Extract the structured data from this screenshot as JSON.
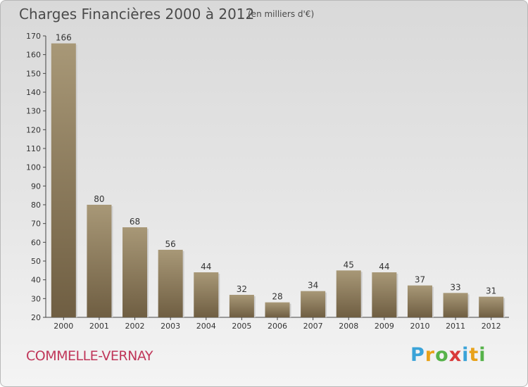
{
  "header": {
    "title": "Charges Financières 2000 à 2012",
    "subtitle": "(en milliers d'€)"
  },
  "footer": {
    "commune": "COMMELLE-VERNAY",
    "logo": [
      "P",
      "r",
      "o",
      "x",
      "i",
      "t",
      "i"
    ],
    "logo_colors": [
      "#3aa3d8",
      "#e8a21a",
      "#56b24a",
      "#d93a3a",
      "#3aa3d8",
      "#e8a21a",
      "#56b24a"
    ]
  },
  "colors": {
    "bar_top": "#a89877",
    "bar_bottom": "#6f5e42",
    "axis": "#444444",
    "accent": "#c0375a"
  },
  "chart_data": {
    "type": "bar",
    "title": "Charges Financières 2000 à 2012",
    "subtitle": "(en milliers d'€)",
    "categories": [
      "2000",
      "2001",
      "2002",
      "2003",
      "2004",
      "2005",
      "2006",
      "2007",
      "2008",
      "2009",
      "2010",
      "2011",
      "2012"
    ],
    "values": [
      166,
      80,
      68,
      56,
      44,
      32,
      28,
      34,
      45,
      44,
      37,
      33,
      31
    ],
    "ylim": [
      20,
      170
    ],
    "yticks": [
      20,
      30,
      40,
      50,
      60,
      70,
      80,
      90,
      100,
      110,
      120,
      130,
      140,
      150,
      160,
      170
    ],
    "grid": false,
    "legend": "none"
  }
}
